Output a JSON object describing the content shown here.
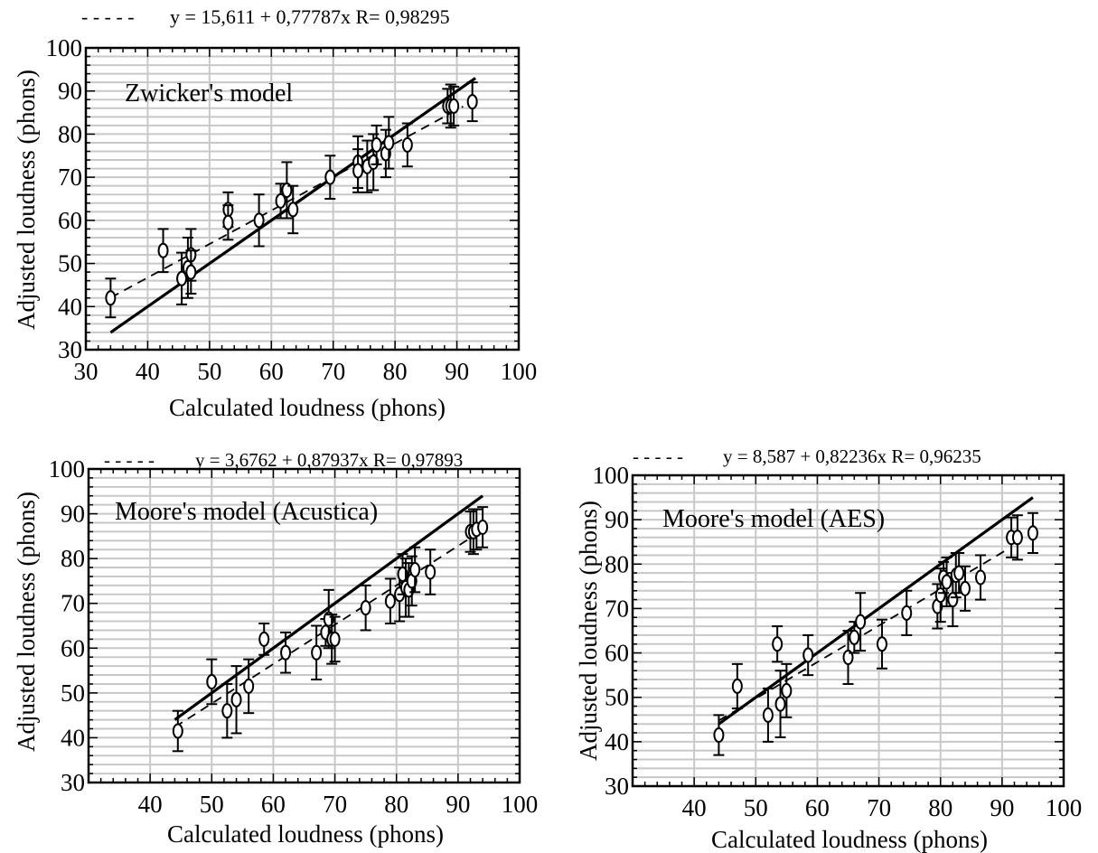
{
  "chart_data": [
    {
      "type": "scatter",
      "model_label": "Zwicker's model",
      "fit_label": "y = 15,611 + 0,77787x R= 0,98295",
      "xlabel": "Calculated loudness (phons)",
      "ylabel": "Adjusted loudness (phons)",
      "xlim": [
        30,
        100
      ],
      "ylim": [
        30,
        100
      ],
      "xticks": [
        "30",
        "40",
        "50",
        "60",
        "70",
        "80",
        "90",
        "100"
      ],
      "yticks": [
        "30",
        "40",
        "50",
        "60",
        "70",
        "80",
        "90",
        "100"
      ],
      "fit": {
        "intercept": 15.611,
        "slope": 0.77787,
        "x_range": [
          34,
          91
        ]
      },
      "identity_line": {
        "x_range": [
          34,
          93
        ]
      },
      "points": [
        {
          "x": 34,
          "y": 42,
          "err": 4.5
        },
        {
          "x": 42.5,
          "y": 53,
          "err": 5
        },
        {
          "x": 45.5,
          "y": 46.5,
          "err": 6
        },
        {
          "x": 46.5,
          "y": 49,
          "err": 7
        },
        {
          "x": 47,
          "y": 52,
          "err": 6
        },
        {
          "x": 47,
          "y": 48,
          "err": 5
        },
        {
          "x": 53,
          "y": 62.5,
          "err": 4
        },
        {
          "x": 53,
          "y": 59.5,
          "err": 4
        },
        {
          "x": 58,
          "y": 60,
          "err": 6
        },
        {
          "x": 61.5,
          "y": 64.5,
          "err": 4
        },
        {
          "x": 62.5,
          "y": 67,
          "err": 6.5
        },
        {
          "x": 63.5,
          "y": 62.5,
          "err": 5.5
        },
        {
          "x": 69.5,
          "y": 70,
          "err": 5
        },
        {
          "x": 74,
          "y": 73.5,
          "err": 6
        },
        {
          "x": 74,
          "y": 71.5,
          "err": 5
        },
        {
          "x": 75.5,
          "y": 72.5,
          "err": 6
        },
        {
          "x": 76.5,
          "y": 73.5,
          "err": 6.5
        },
        {
          "x": 77,
          "y": 77.5,
          "err": 4.5
        },
        {
          "x": 78.5,
          "y": 75.5,
          "err": 5.5
        },
        {
          "x": 79,
          "y": 78,
          "err": 6
        },
        {
          "x": 82,
          "y": 77.5,
          "err": 5
        },
        {
          "x": 88.5,
          "y": 86.5,
          "err": 4
        },
        {
          "x": 89,
          "y": 86.5,
          "err": 5
        },
        {
          "x": 89.5,
          "y": 86.5,
          "err": 4.5
        },
        {
          "x": 92.5,
          "y": 87.5,
          "err": 4.5
        }
      ]
    },
    {
      "type": "scatter",
      "model_label": "Moore's model (Acustica)",
      "fit_label": "y = 3,6762 + 0,87937x R= 0,97893",
      "xlabel": "Calculated loudness (phons)",
      "ylabel": "Adjusted loudness (phons)",
      "xlim": [
        30,
        100
      ],
      "ylim": [
        30,
        100
      ],
      "xticks": [
        "40",
        "50",
        "60",
        "70",
        "80",
        "90",
        "100"
      ],
      "yticks": [
        "30",
        "40",
        "50",
        "60",
        "70",
        "80",
        "90",
        "100"
      ],
      "fit": {
        "intercept": 3.6762,
        "slope": 0.87937,
        "x_range": [
          44,
          92
        ]
      },
      "identity_line": {
        "x_range": [
          44,
          94
        ]
      },
      "points": [
        {
          "x": 44.5,
          "y": 41.5,
          "err": 4.5
        },
        {
          "x": 50,
          "y": 52.5,
          "err": 5
        },
        {
          "x": 52.5,
          "y": 46,
          "err": 6
        },
        {
          "x": 54,
          "y": 48.5,
          "err": 7.5
        },
        {
          "x": 56,
          "y": 51.5,
          "err": 6
        },
        {
          "x": 58.5,
          "y": 62,
          "err": 3.5
        },
        {
          "x": 62,
          "y": 59,
          "err": 4.5
        },
        {
          "x": 67,
          "y": 59,
          "err": 6
        },
        {
          "x": 68.5,
          "y": 63.5,
          "err": 3
        },
        {
          "x": 69,
          "y": 66.5,
          "err": 6.5
        },
        {
          "x": 69.5,
          "y": 62,
          "err": 5.5
        },
        {
          "x": 70,
          "y": 62,
          "err": 5
        },
        {
          "x": 75,
          "y": 69,
          "err": 5
        },
        {
          "x": 79,
          "y": 70.5,
          "err": 5
        },
        {
          "x": 80.5,
          "y": 72,
          "err": 6
        },
        {
          "x": 81,
          "y": 76.5,
          "err": 4.5
        },
        {
          "x": 81.5,
          "y": 73.5,
          "err": 6.5
        },
        {
          "x": 82,
          "y": 73,
          "err": 6
        },
        {
          "x": 82.5,
          "y": 75,
          "err": 5.5
        },
        {
          "x": 83,
          "y": 77.5,
          "err": 5
        },
        {
          "x": 85.5,
          "y": 77,
          "err": 5
        },
        {
          "x": 92,
          "y": 86,
          "err": 4.5
        },
        {
          "x": 92.5,
          "y": 86,
          "err": 5
        },
        {
          "x": 93,
          "y": 86.5,
          "err": 4.5
        },
        {
          "x": 94,
          "y": 87,
          "err": 4.5
        }
      ]
    },
    {
      "type": "scatter",
      "model_label": "Moore's model (AES)",
      "fit_label": "y = 8,587 + 0,82236x R= 0,96235",
      "xlabel": "Calculated loudness (phons)",
      "ylabel": "Adjusted loudness (phons)",
      "xlim": [
        30,
        100
      ],
      "ylim": [
        30,
        100
      ],
      "xticks": [
        "40",
        "50",
        "60",
        "70",
        "80",
        "90",
        "100"
      ],
      "yticks": [
        "30",
        "40",
        "50",
        "60",
        "70",
        "80",
        "90",
        "100"
      ],
      "fit": {
        "intercept": 8.587,
        "slope": 0.82236,
        "x_range": [
          44,
          91
        ]
      },
      "identity_line": {
        "x_range": [
          44,
          95
        ]
      },
      "points": [
        {
          "x": 44,
          "y": 41.5,
          "err": 4.5
        },
        {
          "x": 47,
          "y": 52.5,
          "err": 5
        },
        {
          "x": 52,
          "y": 46,
          "err": 6
        },
        {
          "x": 53.5,
          "y": 62,
          "err": 4
        },
        {
          "x": 54,
          "y": 48.5,
          "err": 7.5
        },
        {
          "x": 55,
          "y": 51.5,
          "err": 6
        },
        {
          "x": 58.5,
          "y": 59.5,
          "err": 4.5
        },
        {
          "x": 65,
          "y": 59,
          "err": 6
        },
        {
          "x": 66,
          "y": 63.5,
          "err": 3.5
        },
        {
          "x": 67,
          "y": 67,
          "err": 6.5
        },
        {
          "x": 70.5,
          "y": 62,
          "err": 5.5
        },
        {
          "x": 74.5,
          "y": 69,
          "err": 5
        },
        {
          "x": 79.5,
          "y": 70.5,
          "err": 5
        },
        {
          "x": 80,
          "y": 73,
          "err": 6
        },
        {
          "x": 80.5,
          "y": 77,
          "err": 3.5
        },
        {
          "x": 81,
          "y": 76,
          "err": 5.5
        },
        {
          "x": 82,
          "y": 72,
          "err": 6
        },
        {
          "x": 82.5,
          "y": 77.5,
          "err": 5
        },
        {
          "x": 83,
          "y": 78,
          "err": 4.5
        },
        {
          "x": 84,
          "y": 74.5,
          "err": 5
        },
        {
          "x": 86.5,
          "y": 77,
          "err": 5
        },
        {
          "x": 91.5,
          "y": 86,
          "err": 4.5
        },
        {
          "x": 92.5,
          "y": 86,
          "err": 5
        },
        {
          "x": 95,
          "y": 87,
          "err": 4.5
        }
      ]
    }
  ]
}
